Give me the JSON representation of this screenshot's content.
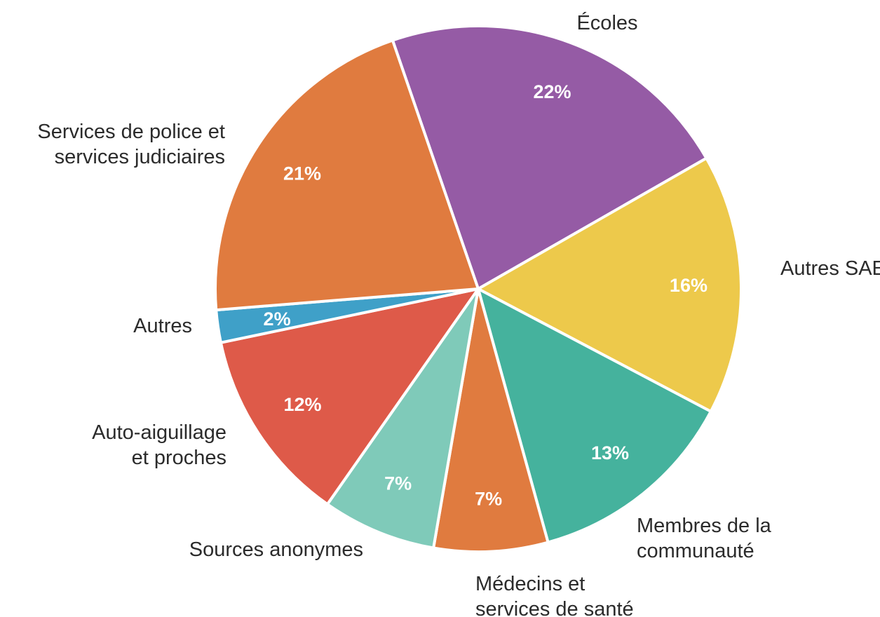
{
  "chart_data": {
    "type": "pie",
    "start_angle_deg": -19,
    "direction": "clockwise",
    "legend": "none",
    "slices": [
      {
        "label": [
          "Écoles"
        ],
        "value": 22,
        "percent_label": "22%",
        "color": "#955BA5"
      },
      {
        "label": [
          "Autres SAE"
        ],
        "value": 16,
        "percent_label": "16%",
        "color": "#EDC94B"
      },
      {
        "label": [
          "Membres de la",
          "communauté"
        ],
        "value": 13,
        "percent_label": "13%",
        "color": "#45B29D"
      },
      {
        "label": [
          "Médecins et",
          "services de santé"
        ],
        "value": 7,
        "percent_label": "7%",
        "color": "#E07B3F"
      },
      {
        "label": [
          "Sources anonymes"
        ],
        "value": 7,
        "percent_label": "7%",
        "color": "#7FCAB9"
      },
      {
        "label": [
          "Auto-aiguillage",
          "et proches"
        ],
        "value": 12,
        "percent_label": "12%",
        "color": "#DE5A49"
      },
      {
        "label": [
          "Autres"
        ],
        "value": 2,
        "percent_label": "2%",
        "color": "#3FA0C8"
      },
      {
        "label": [
          "Services de police et",
          "services judiciaires"
        ],
        "value": 21,
        "percent_label": "21%",
        "color": "#E07B3F"
      }
    ]
  }
}
